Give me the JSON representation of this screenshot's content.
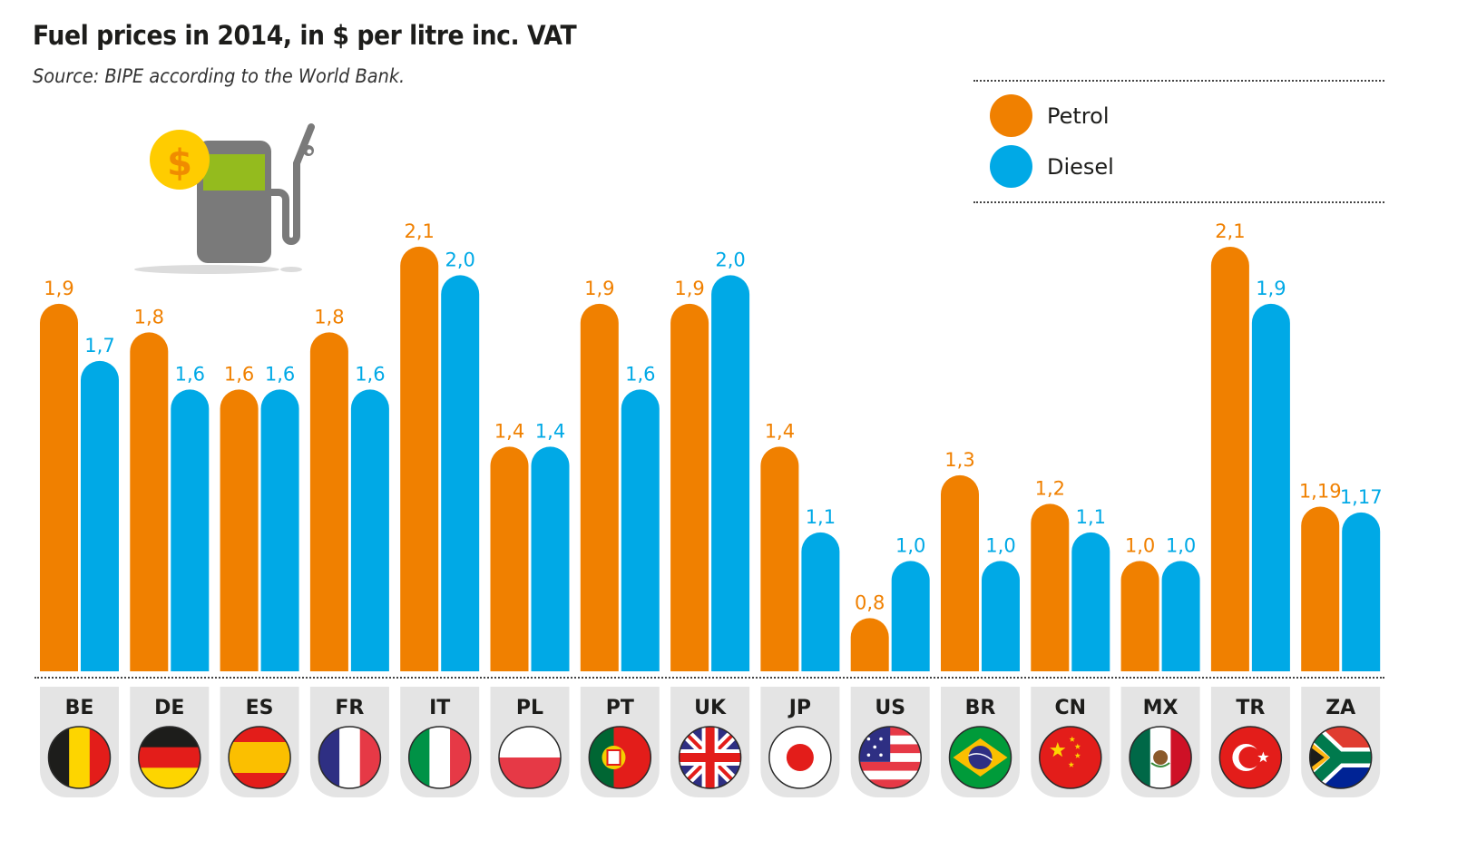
{
  "header": {
    "title": "Fuel prices in 2014, in $ per litre inc. VAT",
    "subtitle": "Source: BIPE according to the World Bank."
  },
  "legend": {
    "items": [
      {
        "label": "Petrol",
        "color": "#f08000"
      },
      {
        "label": "Diesel",
        "color": "#00a9e6"
      }
    ]
  },
  "illustration": {
    "icon": "fuel-pump-with-dollar-coin-icon",
    "colors": {
      "pump": "#7a7a7a",
      "screen": "#94bb1e",
      "coin": "#ffcc00",
      "dollar": "#f08c00",
      "shadow": "#dcdcdc"
    }
  },
  "chart_data": {
    "type": "bar",
    "title": "Fuel prices in 2014, in $ per litre inc. VAT",
    "subtitle": "Source: BIPE according to the World Bank.",
    "xlabel": "",
    "ylabel": "$ per litre inc. VAT",
    "grid": false,
    "legend_position": "top-right",
    "categories": [
      "BE",
      "DE",
      "ES",
      "FR",
      "IT",
      "PL",
      "PT",
      "UK",
      "JP",
      "US",
      "BR",
      "CN",
      "MX",
      "TR",
      "ZA"
    ],
    "category_flags": [
      "Belgium",
      "Germany",
      "Spain",
      "France",
      "Italy",
      "Poland",
      "Portugal",
      "United Kingdom",
      "Japan",
      "United States",
      "Brazil",
      "China",
      "Mexico",
      "Turkey",
      "South Africa"
    ],
    "series": [
      {
        "name": "Petrol",
        "color": "#f08000",
        "values": [
          1.9,
          1.8,
          1.6,
          1.8,
          2.1,
          1.4,
          1.9,
          1.9,
          1.4,
          0.8,
          1.3,
          1.2,
          1.0,
          2.1,
          1.19
        ],
        "labels": [
          "1,9",
          "1,8",
          "1,6",
          "1,8",
          "2,1",
          "1,4",
          "1,9",
          "1,9",
          "1,4",
          "0,8",
          "1,3",
          "1,2",
          "1,0",
          "2,1",
          "1,19"
        ]
      },
      {
        "name": "Diesel",
        "color": "#00a9e6",
        "values": [
          1.7,
          1.6,
          1.6,
          1.6,
          2.0,
          1.4,
          1.6,
          2.0,
          1.1,
          1.0,
          1.0,
          1.1,
          1.0,
          1.9,
          1.17
        ],
        "labels": [
          "1,7",
          "1,6",
          "1,6",
          "1,6",
          "2,0",
          "1,4",
          "1,6",
          "2,0",
          "1,1",
          "1,0",
          "1,0",
          "1,1",
          "1,0",
          "1,9",
          "1,17"
        ]
      }
    ]
  }
}
